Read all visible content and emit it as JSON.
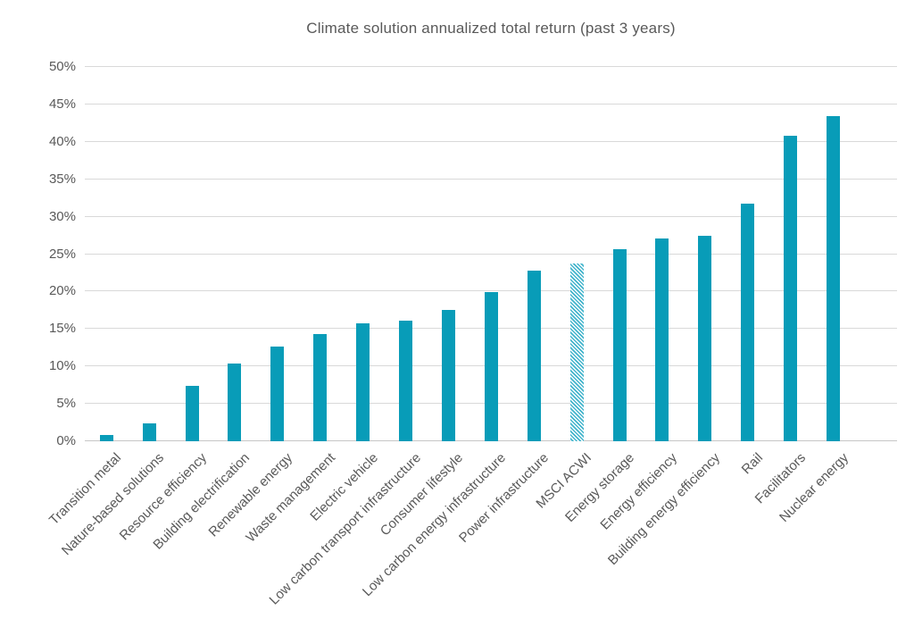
{
  "chart_data": {
    "type": "bar",
    "title": "Climate solution annualized total return (past 3 years)",
    "categories": [
      "Transition metal",
      "Nature-based solutions",
      "Resource efficiency",
      "Building electrification",
      "Renewable energy",
      "Waste management",
      "Electric vehicle",
      "Low carbon transport infrastructure",
      "Consumer lifestyle",
      "Low carbon energy infrastructure",
      "Power infrastructure",
      "MSCI ACWI",
      "Energy storage",
      "Energy efficiency",
      "Building energy efficiency",
      "Rail",
      "Facilitators",
      "Nuclear energy"
    ],
    "values": [
      0.8,
      2.4,
      7.4,
      10.4,
      12.6,
      14.3,
      15.8,
      16.1,
      17.5,
      19.9,
      22.8,
      23.7,
      25.6,
      27.1,
      27.5,
      31.8,
      40.8,
      43.4
    ],
    "unit": "%",
    "benchmark_category": "MSCI ACWI",
    "benchmark_style": "diagonal-hatch",
    "xlabel": "",
    "ylabel": "",
    "ylim": [
      0,
      50
    ],
    "ytick_labels": [
      "0%",
      "5%",
      "10%",
      "15%",
      "20%",
      "25%",
      "30%",
      "35%",
      "40%",
      "45%",
      "50%"
    ],
    "grid": "horizontal",
    "legend_position": "none",
    "colors": {
      "bar": "#089cb8",
      "hatch_stripe": "#43b4cc",
      "gridline": "#d9d9d9",
      "axis_text": "#595959",
      "title_text": "#595959",
      "background": "#ffffff"
    }
  }
}
